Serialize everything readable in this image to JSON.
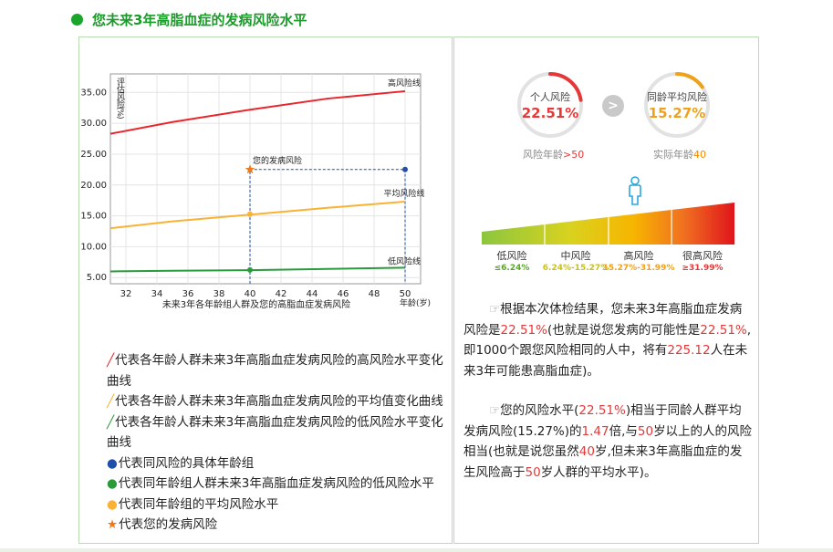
{
  "header": {
    "title": "您未来3年高脂血症的发病风险水平"
  },
  "chart_data": {
    "type": "line",
    "xlabel": "年龄(岁)",
    "ylabel": "评估风险(%)",
    "caption": "未来3年各年龄组人群及您的高脂血症发病风险",
    "x_ticks": [
      32,
      34,
      36,
      38,
      40,
      42,
      44,
      46,
      48,
      50
    ],
    "y_ticks": [
      5.0,
      10.0,
      15.0,
      20.0,
      25.0,
      30.0,
      35.0
    ],
    "y_tick_labels": [
      "5.00",
      "10.00",
      "15.00",
      "20.00",
      "25.00",
      "30.00",
      "35.00"
    ],
    "xlim": [
      31,
      51
    ],
    "ylim": [
      4,
      38
    ],
    "grid": true,
    "series": [
      {
        "name": "高风险线",
        "color": "#e8262b",
        "x": [
          31,
          35,
          40,
          45,
          50
        ],
        "y": [
          28.3,
          30.2,
          32.2,
          34.0,
          35.2
        ]
      },
      {
        "name": "平均风险线",
        "color": "#f9b233",
        "x": [
          31,
          35,
          40,
          45,
          50
        ],
        "y": [
          13.0,
          14.1,
          15.2,
          16.3,
          17.3
        ]
      },
      {
        "name": "低风险线",
        "color": "#2a9b3a",
        "x": [
          31,
          35,
          40,
          45,
          50
        ],
        "y": [
          6.0,
          6.1,
          6.2,
          6.4,
          6.6
        ]
      }
    ],
    "points": [
      {
        "name": "您的发病风险",
        "x": 40,
        "y": 22.51,
        "color": "#f07a1a",
        "marker": "star"
      },
      {
        "x": 50,
        "y": 22.51,
        "color": "#1f4fa8",
        "marker": "dot"
      },
      {
        "x": 40,
        "y": 15.27,
        "color": "#f9b233",
        "marker": "dot"
      },
      {
        "x": 40,
        "y": 6.24,
        "color": "#2a9b3a",
        "marker": "dot"
      }
    ],
    "annotations": [
      "高风险线",
      "平均风险线",
      "低风险线",
      "您的发病风险"
    ]
  },
  "legend": [
    {
      "symbol": "╱",
      "color": "#e8262b",
      "text": "代表各年龄人群未来3年高脂血症发病风险的高风险水平变化曲线"
    },
    {
      "symbol": "╱",
      "color": "#f9b233",
      "text": "代表各年龄人群未来3年高脂血症发病风险的平均值变化曲线"
    },
    {
      "symbol": "╱",
      "color": "#2a9b3a",
      "text": "代表各年龄人群未来3年高脂血症发病风险的低风险水平变化曲线"
    },
    {
      "symbol": "●",
      "color": "#1f4fa8",
      "text": "代表同风险的具体年龄组"
    },
    {
      "symbol": "●",
      "color": "#2a9b3a",
      "text": "代表同年龄组人群未来3年高脂血症发病风险的低风险水平"
    },
    {
      "symbol": "●",
      "color": "#f9b233",
      "text": "代表同年龄组的平均风险水平"
    },
    {
      "symbol": "★",
      "color": "#f07a1a",
      "text": "代表您的发病风险"
    }
  ],
  "gauges": {
    "personal": {
      "label": "个人风险",
      "value": "22.51%",
      "color": "#e53838",
      "fraction": 0.2251,
      "sub_prefix": "风险年龄",
      "sub_value": ">50"
    },
    "average": {
      "label": "同龄平均风险",
      "value": "15.27%",
      "color": "#f0a11a",
      "fraction": 0.1527,
      "sub_prefix": "实际年龄",
      "sub_value": "40"
    },
    "compare_symbol": ">"
  },
  "scale": {
    "levels": [
      "低风险",
      "中风险",
      "高风险",
      "很高风险"
    ],
    "ranges": [
      "≤6.24%",
      "6.24%-15.27%",
      "15.27%-31.99%",
      "≥31.99%"
    ],
    "range_colors": [
      "#5aa62a",
      "#c8c020",
      "#f0a11a",
      "#e53838"
    ],
    "marker_value": "22.51%"
  },
  "paragraph1": {
    "p1": "根据本次体检结果，您未来3年高脂血症发病风险是",
    "v1": "22.51%",
    "p2": "(也就是说您发病的可能性是",
    "v2": "22.51%",
    "p3": ",即1000个跟您风险相同的人中，将有",
    "v3": "225.12",
    "p4": "人在未来3年可能患高脂血症)。"
  },
  "paragraph2": {
    "p1": "您的风险水平(",
    "v1": "22.51%",
    "p2": ")相当于同龄人群平均发病风险(15.27%)的",
    "v2": "1.47",
    "p3": "倍,与",
    "v3": "50",
    "p4": "岁以上的人的风险相当(也就是说您虽然",
    "v4": "40",
    "p5": "岁,但未来3年高脂血症的发生风险高于",
    "v5": "50",
    "p6": "岁人群的平均水平)。"
  }
}
